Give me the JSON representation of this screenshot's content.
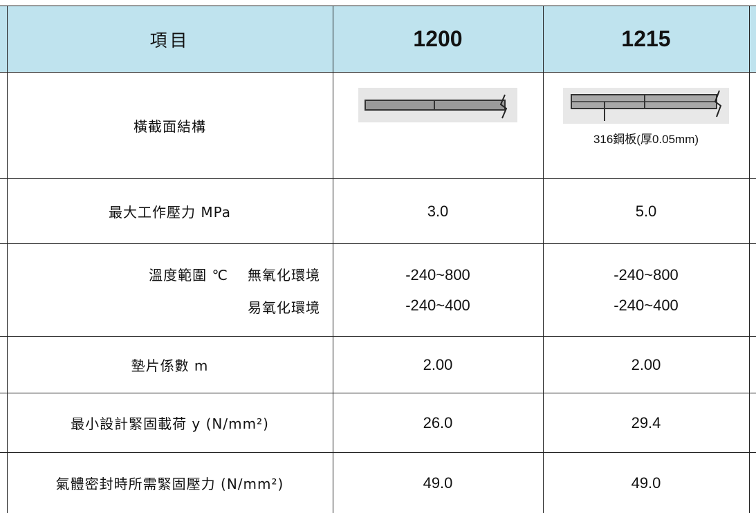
{
  "table": {
    "header": {
      "item": "項目",
      "col1": "1200",
      "col2": "1215"
    },
    "rows": [
      {
        "label": "橫截面結構",
        "col2_note": "316鋼板(厚0.05mm)"
      },
      {
        "label": "最大工作壓力 MPa",
        "col1": "3.0",
        "col2": "5.0"
      },
      {
        "label": "溫度範圍 ℃",
        "env1": "無氧化環境",
        "env2": "易氧化環境",
        "col1_env1": "-240~800",
        "col1_env2": "-240~400",
        "col2_env1": "-240~800",
        "col2_env2": "-240~400"
      },
      {
        "label": "墊片係數  m",
        "col1": "2.00",
        "col2": "2.00"
      },
      {
        "label": "最小設計緊固載荷 y (N/mm²)",
        "col1": "26.0",
        "col2": "29.4"
      },
      {
        "label": "氣體密封時所需緊固壓力  (N/mm²)",
        "col1": "49.0",
        "col2": "49.0"
      }
    ]
  },
  "colors": {
    "header_bg": "#bfe3ee",
    "border": "#222222"
  }
}
